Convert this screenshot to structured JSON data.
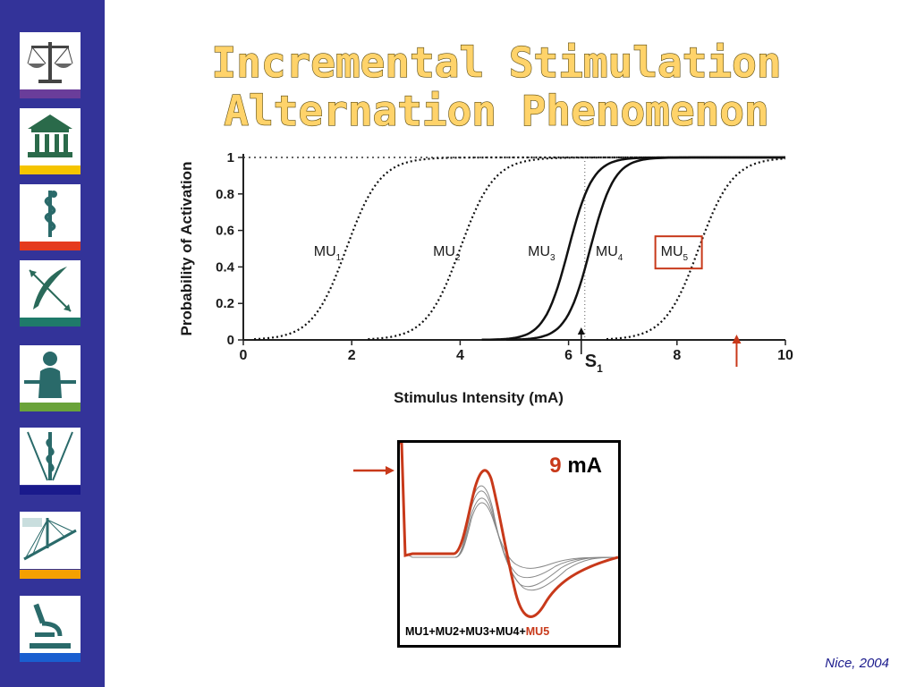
{
  "title": {
    "line1": "Incremental Stimulation",
    "line2": "Alternation Phenomenon"
  },
  "sidebar": {
    "tiles": [
      {
        "icon": "scales-icon",
        "bar_color": "#6a3d9a"
      },
      {
        "icon": "courthouse-icon",
        "bar_color": "#f5c400"
      },
      {
        "icon": "caduceus-icon",
        "bar_color": "#e53a1e"
      },
      {
        "icon": "quill-arrows-icon",
        "bar_color": "#1f7a6a"
      },
      {
        "icon": "person-icon",
        "bar_color": "#6aa33a"
      },
      {
        "icon": "rod-of-asclepius-icon",
        "bar_color": "#1a1a8c"
      },
      {
        "icon": "bridge-icon",
        "bar_color": "#f5a000"
      },
      {
        "icon": "microscope-icon",
        "bar_color": "#1a5fd0"
      }
    ]
  },
  "chart_data": [
    {
      "type": "line",
      "xlabel": "Stimulus Intensity (mA)",
      "ylabel": "Probability of Activation",
      "xlim": [
        0,
        10
      ],
      "ylim": [
        0,
        1
      ],
      "xticks": [
        "0",
        "2",
        "4",
        "6",
        "8",
        "10"
      ],
      "yticks": [
        "0",
        "0.2",
        "0.4",
        "0.6",
        "0.8",
        "1"
      ],
      "series": [
        {
          "name": "MU1",
          "style": "dotted",
          "midpoint": 1.9,
          "slope": 3.2
        },
        {
          "name": "MU2",
          "style": "dotted",
          "midpoint": 4.0,
          "slope": 3.2
        },
        {
          "name": "MU3",
          "style": "solid",
          "midpoint": 6.0,
          "slope": 4.5
        },
        {
          "name": "MU4",
          "style": "solid",
          "midpoint": 6.4,
          "slope": 4.5
        },
        {
          "name": "MU5",
          "style": "dotted",
          "midpoint": 8.4,
          "slope": 3.2
        }
      ],
      "labels": {
        "mu1": {
          "main": "MU",
          "sub": "1"
        },
        "mu2": {
          "main": "MU",
          "sub": "2"
        },
        "mu3": {
          "main": "MU",
          "sub": "3"
        },
        "mu4": {
          "main": "MU",
          "sub": "4"
        },
        "mu5": {
          "main": "MU",
          "sub": "5"
        }
      },
      "annotations": {
        "s1": {
          "main": "S",
          "sub": "1",
          "x": 6.3
        },
        "arrow_x": 9.1,
        "highlight": "MU5",
        "highlight_color": "#c8391a"
      }
    },
    {
      "type": "line",
      "title": "9 mA",
      "series_note": "waveform traces",
      "highlight_color": "#c8391a"
    }
  ],
  "inset": {
    "intensity_value": "9",
    "intensity_unit": "mA",
    "sum_prefix": "MU1+MU2+MU3+MU4+",
    "sum_highlight": "MU5"
  },
  "footer": {
    "credit": "Nice, 2004"
  }
}
